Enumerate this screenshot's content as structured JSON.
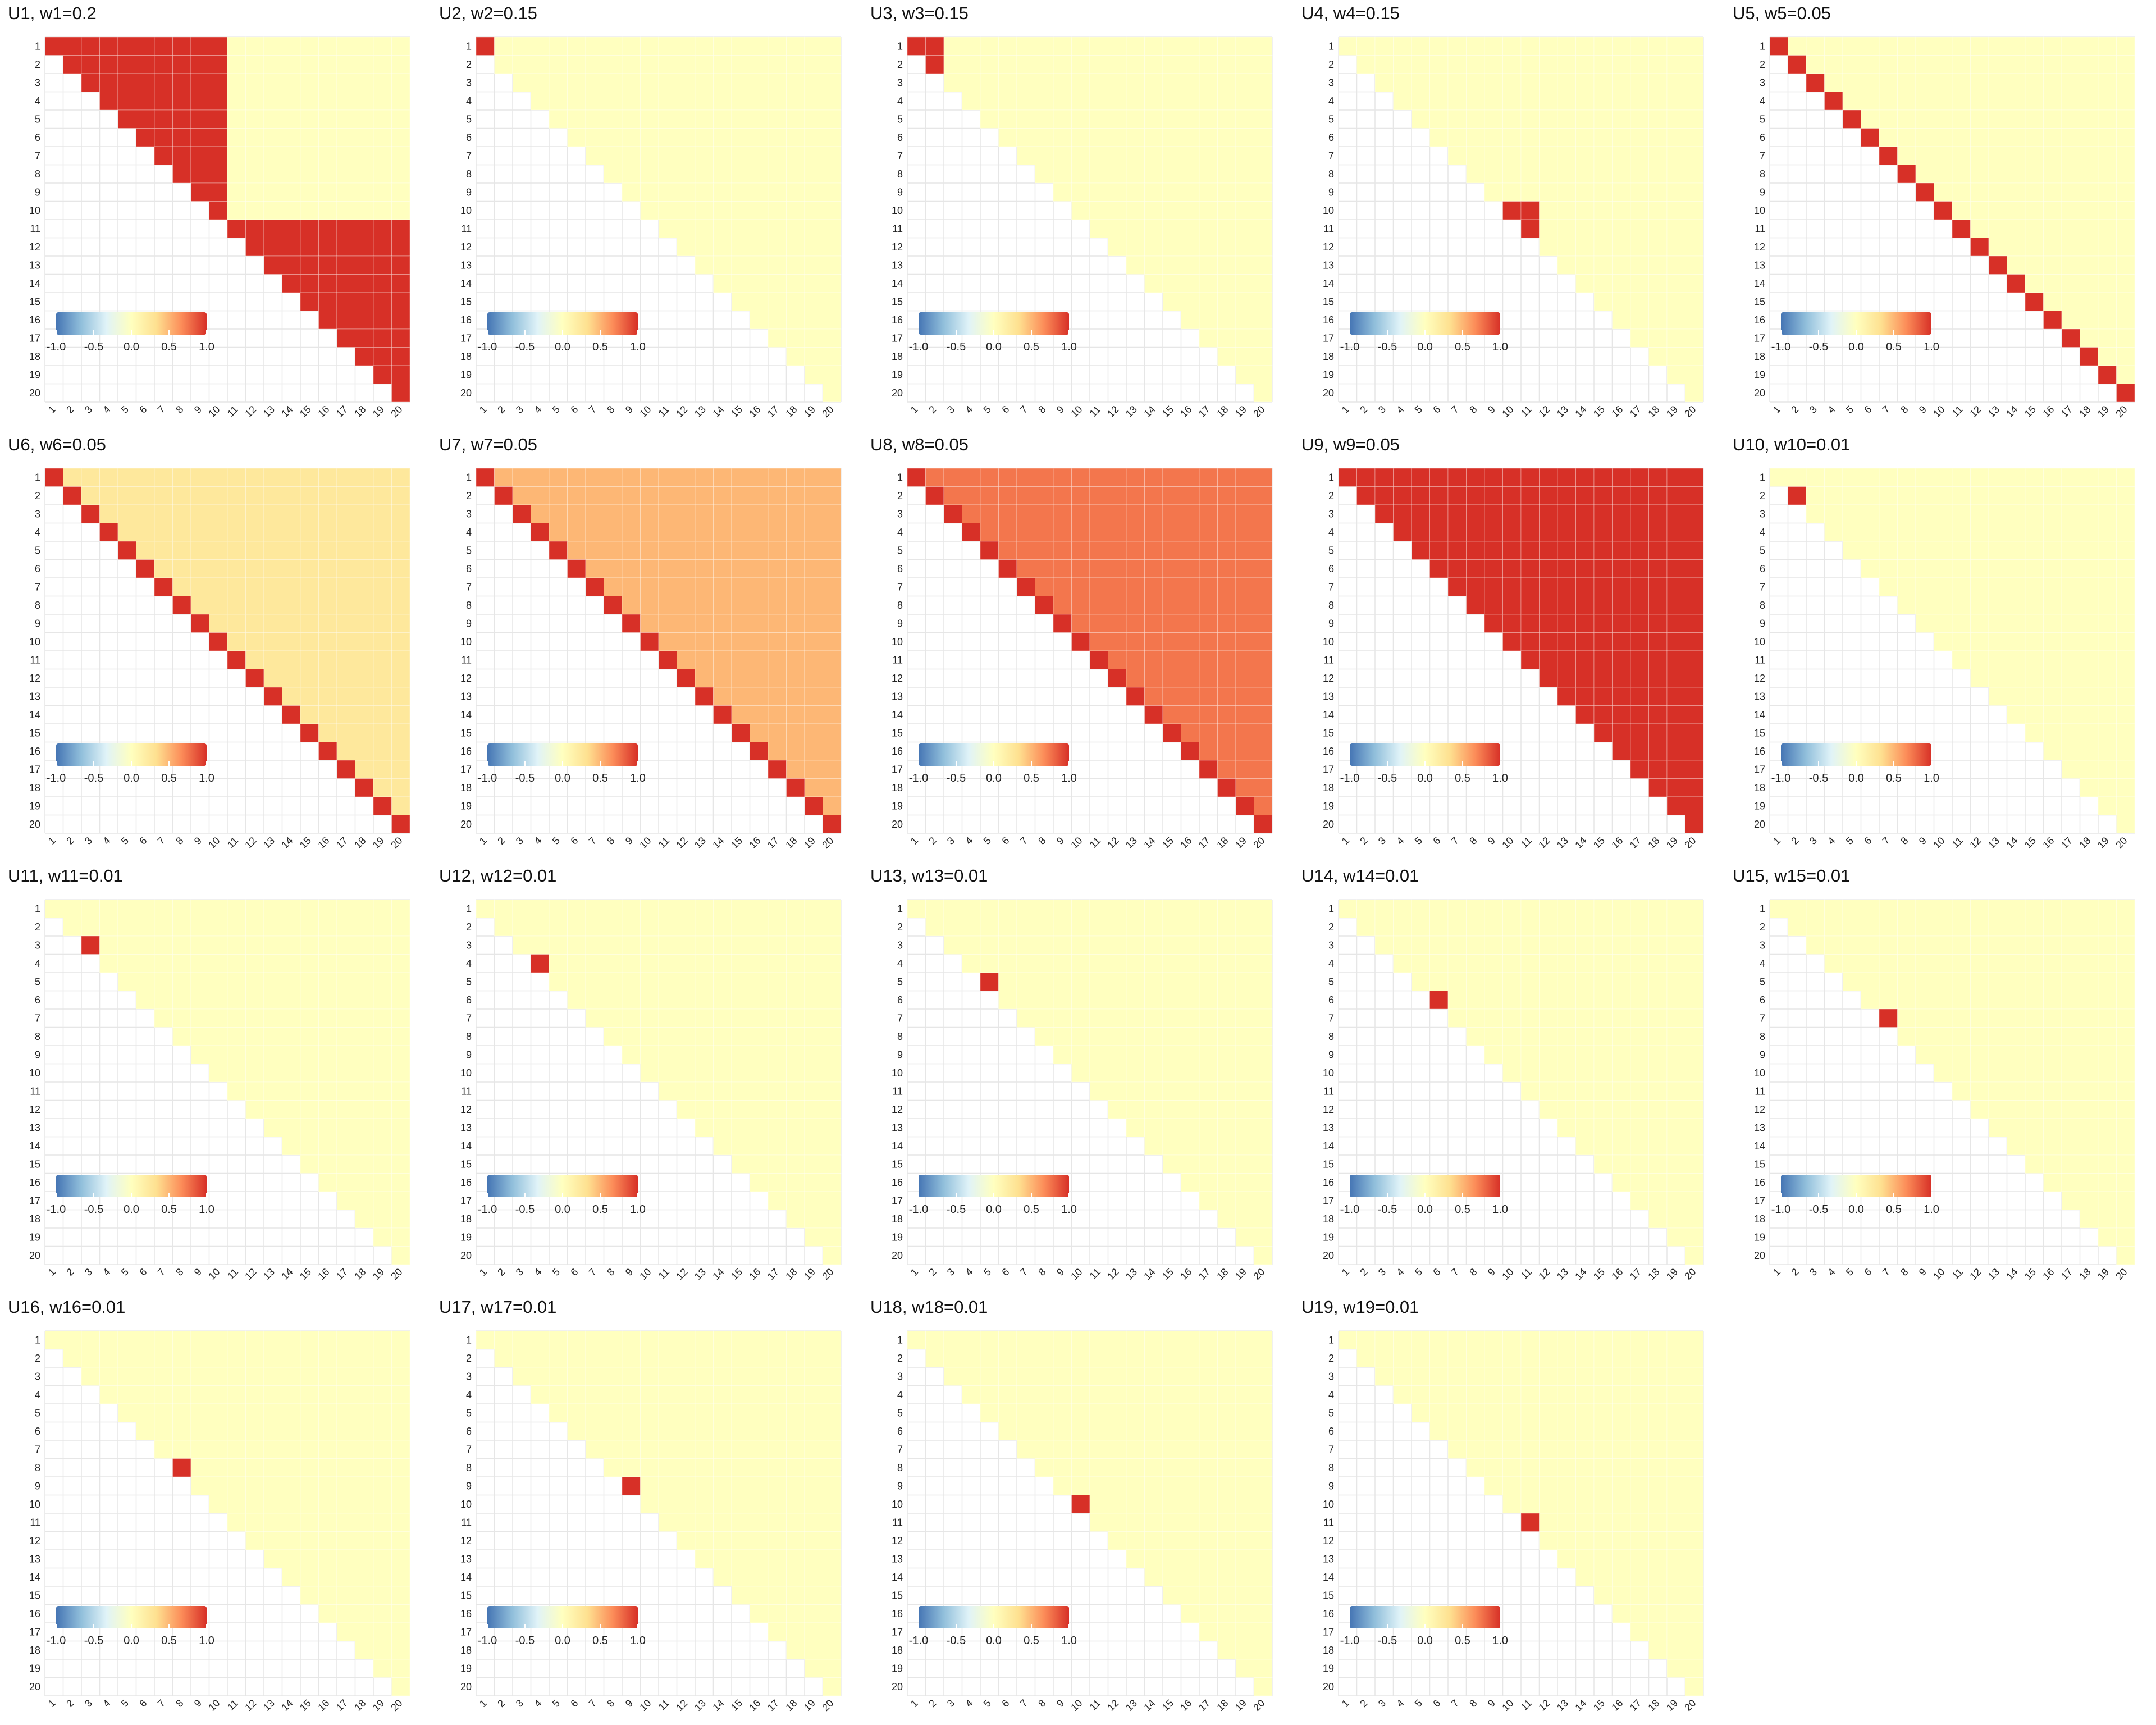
{
  "chart_data": {
    "type": "heatmap",
    "matrix_size": 20,
    "row_labels": [
      "1",
      "2",
      "3",
      "4",
      "5",
      "6",
      "7",
      "8",
      "9",
      "10",
      "11",
      "12",
      "13",
      "14",
      "15",
      "16",
      "17",
      "18",
      "19",
      "20"
    ],
    "col_labels": [
      "1",
      "2",
      "3",
      "4",
      "5",
      "6",
      "7",
      "8",
      "9",
      "10",
      "11",
      "12",
      "13",
      "14",
      "15",
      "16",
      "17",
      "18",
      "19",
      "20"
    ],
    "colorbar": {
      "range": [
        -1.0,
        1.0
      ],
      "tick_labels": [
        "-1.0",
        "-0.5",
        "0.0",
        "0.5",
        "1.0"
      ],
      "colors": [
        "#4575b4",
        "#91bfdb",
        "#e0f3f8",
        "#ffffbf",
        "#fee090",
        "#fc8d59",
        "#d73027"
      ]
    },
    "colors": {
      "grid": "#e6e6e6",
      "background": "#ffffff"
    },
    "panels": [
      {
        "title": "U1, w1=0.2",
        "pattern": "blocks",
        "blocks": [
          [
            1,
            10
          ],
          [
            11,
            20
          ]
        ],
        "value": 1,
        "background_value": 0
      },
      {
        "title": "U2, w2=0.15",
        "pattern": "blocks",
        "blocks": [
          [
            1,
            1
          ]
        ],
        "value": 1,
        "background_value": 0
      },
      {
        "title": "U3, w3=0.15",
        "pattern": "blocks",
        "blocks": [
          [
            1,
            2
          ]
        ],
        "value": 1,
        "background_value": 0
      },
      {
        "title": "U4, w4=0.15",
        "pattern": "blocks",
        "blocks": [
          [
            10,
            11
          ]
        ],
        "value": 1,
        "background_value": 0
      },
      {
        "title": "U5, w5=0.05",
        "pattern": "diagonal",
        "diag_value": 1,
        "off_value": 0
      },
      {
        "title": "U6, w6=0.05",
        "pattern": "diagonal",
        "diag_value": 1,
        "off_value": 0.25
      },
      {
        "title": "U7, w7=0.05",
        "pattern": "diagonal",
        "diag_value": 1,
        "off_value": 0.5
      },
      {
        "title": "U8, w8=0.05",
        "pattern": "diagonal",
        "diag_value": 1,
        "off_value": 0.75
      },
      {
        "title": "U9, w9=0.05",
        "pattern": "diagonal",
        "diag_value": 1,
        "off_value": 1
      },
      {
        "title": "U10, w10=0.01",
        "pattern": "single",
        "index": 2,
        "value": 1,
        "background_value": 0
      },
      {
        "title": "U11, w11=0.01",
        "pattern": "single",
        "index": 3,
        "value": 1,
        "background_value": 0
      },
      {
        "title": "U12, w12=0.01",
        "pattern": "single",
        "index": 4,
        "value": 1,
        "background_value": 0
      },
      {
        "title": "U13, w13=0.01",
        "pattern": "single",
        "index": 5,
        "value": 1,
        "background_value": 0
      },
      {
        "title": "U14, w14=0.01",
        "pattern": "single",
        "index": 6,
        "value": 1,
        "background_value": 0
      },
      {
        "title": "U15, w15=0.01",
        "pattern": "single",
        "index": 7,
        "value": 1,
        "background_value": 0
      },
      {
        "title": "U16, w16=0.01",
        "pattern": "single",
        "index": 8,
        "value": 1,
        "background_value": 0
      },
      {
        "title": "U17, w17=0.01",
        "pattern": "single",
        "index": 9,
        "value": 1,
        "background_value": 0
      },
      {
        "title": "U18, w18=0.01",
        "pattern": "single",
        "index": 10,
        "value": 1,
        "background_value": 0
      },
      {
        "title": "U19, w19=0.01",
        "pattern": "single",
        "index": 11,
        "value": 1,
        "background_value": 0
      }
    ]
  }
}
